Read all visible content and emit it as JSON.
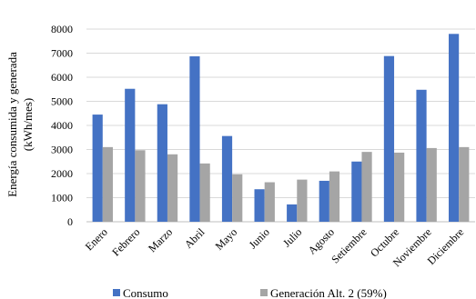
{
  "chart_data": {
    "type": "bar",
    "title": "",
    "xlabel": "",
    "ylabel": "Energía consumida y generada (kWh/mes)",
    "ylabel_lines": [
      "Energía consumida y generada",
      "(kWh/mes)"
    ],
    "ylim": [
      0,
      8000
    ],
    "yticks": [
      0,
      1000,
      2000,
      3000,
      4000,
      5000,
      6000,
      7000,
      8000
    ],
    "grid": true,
    "legend_position": "bottom",
    "categories": [
      "Enero",
      "Febrero",
      "Marzo",
      "Abril",
      "Mayo",
      "Junio",
      "Julio",
      "Agosto",
      "Setiembre",
      "Octubre",
      "Noviembre",
      "Diciembre"
    ],
    "series": [
      {
        "name": "Consumo",
        "color": "#4472c4",
        "values": [
          4450,
          5520,
          4880,
          6870,
          3560,
          1350,
          720,
          1700,
          2500,
          6880,
          5480,
          7800
        ]
      },
      {
        "name": "Generación Alt. 2 (59%)",
        "color": "#a5a5a5",
        "values": [
          3100,
          2970,
          2800,
          2420,
          1970,
          1640,
          1750,
          2090,
          2900,
          2870,
          3060,
          3100
        ]
      }
    ]
  }
}
